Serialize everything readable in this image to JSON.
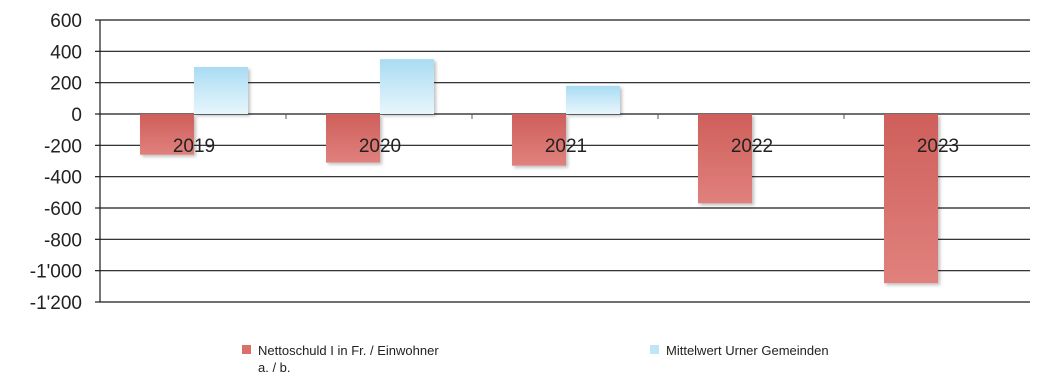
{
  "chart_data": {
    "type": "bar",
    "categories": [
      "2019",
      "2020",
      "2021",
      "2022",
      "2023"
    ],
    "series": [
      {
        "name": "Nettoschuld I in Fr. / Einwohner a. / b.",
        "values": [
          -260,
          -310,
          -330,
          -570,
          -1080
        ],
        "color": "#d9706c"
      },
      {
        "name": "Mittelwert Urner Gemeinden",
        "values": [
          300,
          350,
          180,
          null,
          null
        ],
        "color": "#bfe6f7"
      }
    ],
    "y_ticks": [
      "600",
      "400",
      "200",
      "0",
      "-200",
      "-400",
      "-600",
      "-800",
      "-1'000",
      "-1'200"
    ],
    "ylim": [
      -1200,
      600
    ],
    "grid": true,
    "legend_position": "bottom"
  },
  "legend": {
    "item1_line1": "Nettoschuld I in Fr. / Einwohner",
    "item1_line2": "a. / b.",
    "item2": "Mittelwert Urner Gemeinden"
  }
}
